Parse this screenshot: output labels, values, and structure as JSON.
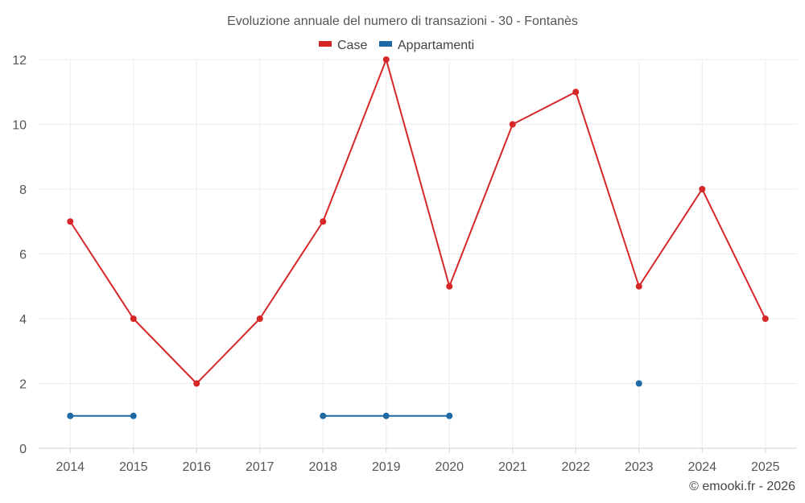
{
  "chart_data": {
    "type": "line",
    "title": "Evoluzione annuale del numero di transazioni - 30 - Fontanès",
    "categories": [
      "2014",
      "2015",
      "2016",
      "2017",
      "2018",
      "2019",
      "2020",
      "2021",
      "2022",
      "2023",
      "2024",
      "2025"
    ],
    "ylim": [
      0,
      12
    ],
    "yticks": [
      0,
      2,
      4,
      6,
      8,
      10,
      12
    ],
    "grid": true,
    "legend_position": "top-center",
    "series": [
      {
        "name": "Case",
        "color": "#d62728",
        "values": [
          7,
          4,
          2,
          4,
          7,
          12,
          5,
          10,
          11,
          5,
          8,
          4
        ]
      },
      {
        "name": "Appartamenti",
        "color": "#1f6aa5",
        "values": [
          1,
          1,
          null,
          null,
          1,
          1,
          1,
          null,
          null,
          2,
          null,
          null
        ]
      }
    ]
  },
  "credit": "© emooki.fr - 2026"
}
